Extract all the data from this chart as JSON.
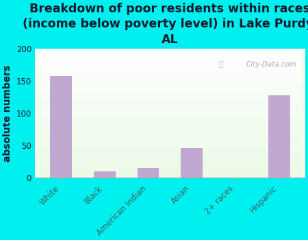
{
  "title": "Breakdown of poor residents within races\n(income below poverty level) in Lake Purdy,\nAL",
  "ylabel": "absolute numbers",
  "categories": [
    "White",
    "Black",
    "American Indian",
    "Asian",
    "2+ races",
    "Hispanic"
  ],
  "values": [
    157,
    10,
    15,
    46,
    0,
    128
  ],
  "bar_color": "#c0a8d0",
  "background_color": "#00f0f0",
  "ylim": [
    0,
    200
  ],
  "yticks": [
    0,
    50,
    100,
    150,
    200
  ],
  "watermark": "City-Data.com",
  "title_fontsize": 12.5,
  "ylabel_fontsize": 10,
  "tick_fontsize": 8.5,
  "title_color": "#1a1a2e",
  "tick_color": "#336666",
  "ylabel_color": "#1a1a2e"
}
